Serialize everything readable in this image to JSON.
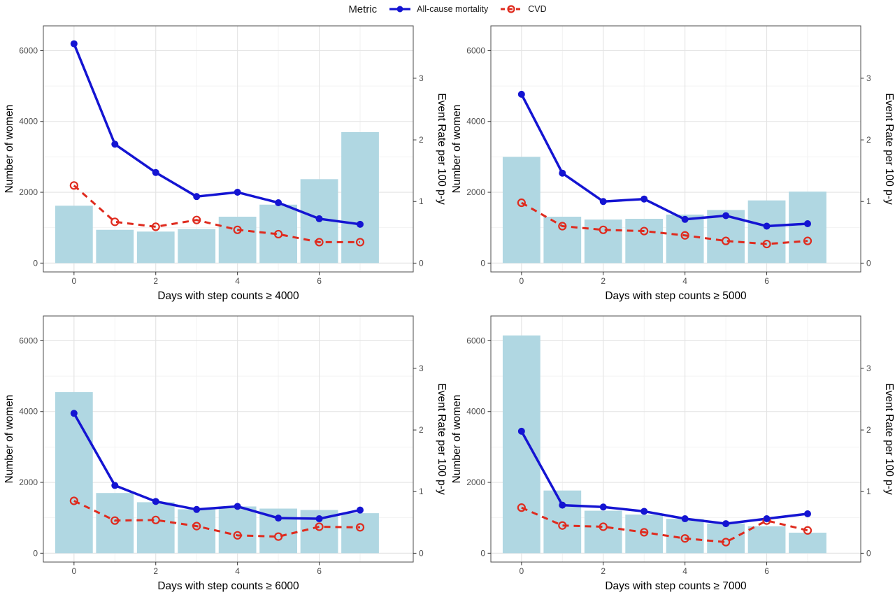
{
  "legend": {
    "title": "Metric",
    "items": [
      {
        "label": "All-cause mortality"
      },
      {
        "label": "CVD"
      }
    ]
  },
  "colors": {
    "bar_fill": "#b0d7e2",
    "all_cause_line": "#1414d2",
    "cvd_line": "#df2b1e",
    "grid_major": "#e3e3e3",
    "grid_minor": "#f1f1f1",
    "panel_border": "#4d4d4d",
    "tick_mark": "#333333",
    "tick_label": "#4d4d4d",
    "axis_title": "#000000"
  },
  "chart_data": [
    {
      "type": "bar",
      "xlabel": "Days with step counts ≥ 4000",
      "x": [
        0,
        1,
        2,
        3,
        4,
        5,
        6,
        7
      ],
      "x_ticks": [
        0,
        2,
        4,
        6
      ],
      "left_axis": {
        "label": "Number of women",
        "ticks": [
          0,
          2000,
          4000,
          6000
        ],
        "range": [
          0,
          6700
        ]
      },
      "right_axis": {
        "label": "Event Rate per 100 p-y",
        "ticks": [
          0,
          1,
          2,
          3
        ],
        "range": [
          0,
          3.85
        ]
      },
      "bars": {
        "name": "Number of women",
        "values": [
          1620,
          940,
          890,
          960,
          1310,
          1650,
          2370,
          3700
        ]
      },
      "series": [
        {
          "name": "All-cause mortality",
          "axis": "right",
          "values": [
            3.56,
            1.93,
            1.47,
            1.08,
            1.15,
            0.98,
            0.72,
            0.63
          ]
        },
        {
          "name": "CVD",
          "axis": "right",
          "values": [
            1.26,
            0.67,
            0.59,
            0.7,
            0.54,
            0.47,
            0.34,
            0.34
          ]
        }
      ]
    },
    {
      "type": "bar",
      "xlabel": "Days with step counts ≥ 5000",
      "x": [
        0,
        1,
        2,
        3,
        4,
        5,
        6,
        7
      ],
      "x_ticks": [
        0,
        2,
        4,
        6
      ],
      "left_axis": {
        "label": "Number of women",
        "ticks": [
          0,
          2000,
          4000,
          6000
        ],
        "range": [
          0,
          6700
        ]
      },
      "right_axis": {
        "label": "Event Rate per 100 p-y",
        "ticks": [
          0,
          1,
          2,
          3
        ],
        "range": [
          0,
          3.85
        ]
      },
      "bars": {
        "name": "Number of women",
        "values": [
          3000,
          1310,
          1230,
          1250,
          1370,
          1500,
          1770,
          2020
        ]
      },
      "series": [
        {
          "name": "All-cause mortality",
          "axis": "right",
          "values": [
            2.74,
            1.46,
            1.0,
            1.04,
            0.71,
            0.77,
            0.6,
            0.64
          ]
        },
        {
          "name": "CVD",
          "axis": "right",
          "values": [
            0.98,
            0.6,
            0.54,
            0.52,
            0.45,
            0.36,
            0.31,
            0.36
          ]
        }
      ]
    },
    {
      "type": "bar",
      "xlabel": "Days with step counts ≥ 6000",
      "x": [
        0,
        1,
        2,
        3,
        4,
        5,
        6,
        7
      ],
      "x_ticks": [
        0,
        2,
        4,
        6
      ],
      "left_axis": {
        "label": "Number of women",
        "ticks": [
          0,
          2000,
          4000,
          6000
        ],
        "range": [
          0,
          6700
        ]
      },
      "right_axis": {
        "label": "Event Rate per 100 p-y",
        "ticks": [
          0,
          1,
          2,
          3
        ],
        "range": [
          0,
          3.85
        ]
      },
      "bars": {
        "name": "Number of women",
        "values": [
          4550,
          1700,
          1440,
          1240,
          1320,
          1260,
          1220,
          1130
        ]
      },
      "series": [
        {
          "name": "All-cause mortality",
          "axis": "right",
          "values": [
            2.27,
            1.1,
            0.84,
            0.71,
            0.76,
            0.57,
            0.56,
            0.7
          ]
        },
        {
          "name": "CVD",
          "axis": "right",
          "values": [
            0.85,
            0.53,
            0.54,
            0.44,
            0.29,
            0.27,
            0.43,
            0.42
          ]
        }
      ]
    },
    {
      "type": "bar",
      "xlabel": "Days with step counts ≥ 7000",
      "x": [
        0,
        1,
        2,
        3,
        4,
        5,
        6,
        7
      ],
      "x_ticks": [
        0,
        2,
        4,
        6
      ],
      "left_axis": {
        "label": "Number of women",
        "ticks": [
          0,
          2000,
          4000,
          6000
        ],
        "range": [
          0,
          6700
        ]
      },
      "right_axis": {
        "label": "Event Rate per 100 p-y",
        "ticks": [
          0,
          1,
          2,
          3
        ],
        "range": [
          0,
          3.85
        ]
      },
      "bars": {
        "name": "Number of women",
        "values": [
          6150,
          1770,
          1200,
          1090,
          970,
          840,
          760,
          580
        ]
      },
      "series": [
        {
          "name": "All-cause mortality",
          "axis": "right",
          "values": [
            1.98,
            0.78,
            0.75,
            0.68,
            0.56,
            0.48,
            0.56,
            0.64
          ]
        },
        {
          "name": "CVD",
          "axis": "right",
          "values": [
            0.74,
            0.45,
            0.43,
            0.34,
            0.24,
            0.18,
            0.53,
            0.37
          ]
        }
      ]
    }
  ]
}
